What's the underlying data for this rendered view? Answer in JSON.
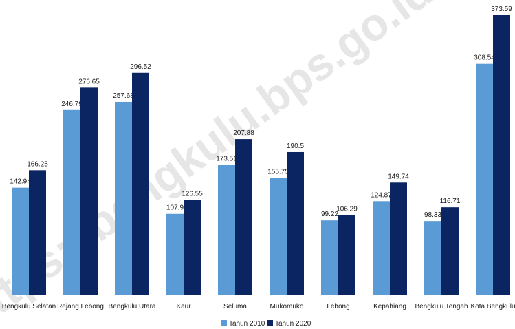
{
  "chart_data": {
    "type": "bar",
    "title": "",
    "xlabel": "",
    "ylabel": "",
    "ylim": [
      0,
      373.59
    ],
    "grid": false,
    "legend_position": "bottom",
    "categories": [
      "Bengkulu Selatan",
      "Rejang Lebong",
      "Bengkulu Utara",
      "Kaur",
      "Seluma",
      "Mukomuko",
      "Lebong",
      "Kepahiang",
      "Bengkulu Tengah",
      "Kota Bengkulu"
    ],
    "series": [
      {
        "name": "Tahun 2010",
        "color": "#5b9bd5",
        "values": [
          142.94,
          246.79,
          257.68,
          107.9,
          173.51,
          155.75,
          99.22,
          124.87,
          98.33,
          308.54
        ]
      },
      {
        "name": "Tahun 2020",
        "color": "#0b2562",
        "values": [
          166.25,
          276.65,
          296.52,
          126.55,
          207.88,
          190.5,
          106.29,
          149.74,
          116.71,
          373.59
        ]
      }
    ]
  },
  "watermark": "https://bengkulu.bps.go.id"
}
